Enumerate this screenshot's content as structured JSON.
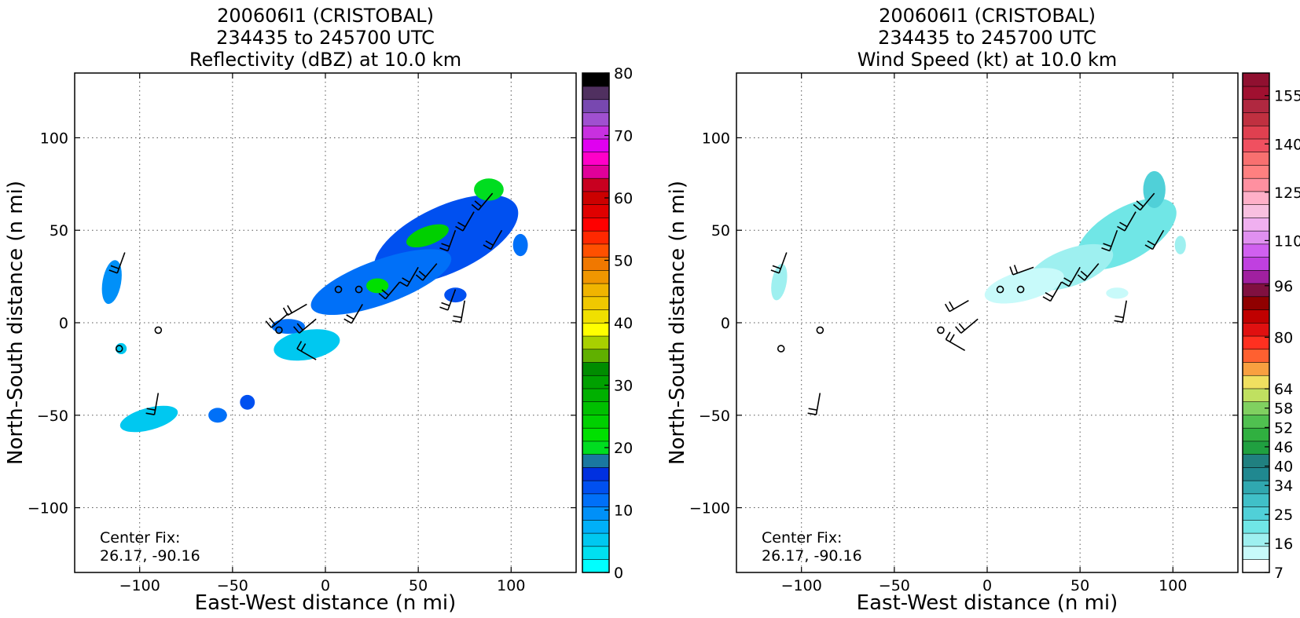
{
  "chart_data": [
    {
      "type": "heatmap",
      "title_lines": [
        "200606I1 (CRISTOBAL)",
        "234435 to 245700 UTC",
        "Reflectivity (dBZ) at 10.0 km"
      ],
      "xlabel": "East-West distance (n mi)",
      "ylabel": "North-South distance (n mi)",
      "xlim": [
        -135,
        135
      ],
      "ylim": [
        -135,
        135
      ],
      "xticks": [
        -100,
        -50,
        0,
        50,
        100
      ],
      "xtick_labels": [
        "−100",
        "−50",
        "0",
        "50",
        "100"
      ],
      "yticks": [
        100,
        50,
        0,
        -50,
        -100
      ],
      "ytick_labels": [
        "100",
        "50",
        "0",
        "−50",
        "−100"
      ],
      "grid": true,
      "annotation": [
        "Center Fix:",
        "26.17, -90.16"
      ],
      "colorbar": {
        "min": 0,
        "max": 80,
        "tick_values": [
          0,
          10,
          20,
          30,
          40,
          50,
          60,
          70,
          80
        ],
        "tick_labels": [
          "0",
          "10",
          "20",
          "30",
          "40",
          "50",
          "60",
          "70",
          "80"
        ],
        "colors": [
          "#00ffff",
          "#00e0f0",
          "#00c8f0",
          "#00b0f8",
          "#0090f8",
          "#0070f8",
          "#0050f0",
          "#0030e0",
          "#1a78a0",
          "#00dd20",
          "#00e000",
          "#00d000",
          "#00c000",
          "#00b000",
          "#00a000",
          "#008c00",
          "#60b000",
          "#a8d000",
          "#ffff00",
          "#f0e000",
          "#f0c800",
          "#f0b400",
          "#f09600",
          "#f07800",
          "#ff5000",
          "#ff2800",
          "#ff0000",
          "#e00000",
          "#cc0000",
          "#c80020",
          "#e0009a",
          "#ff00c8",
          "#e000f0",
          "#c830e0",
          "#a050d0",
          "#7848b0",
          "#503060",
          "#000000"
        ]
      },
      "regions": [
        {
          "value": 14,
          "cx": 65,
          "cy": 45,
          "rx": 42,
          "ry": 18,
          "rot": -25
        },
        {
          "value": 24,
          "cx": 55,
          "cy": 47,
          "rx": 12,
          "ry": 5,
          "rot": -20
        },
        {
          "value": 20,
          "cx": 88,
          "cy": 72,
          "rx": 8,
          "ry": 6,
          "rot": 0
        },
        {
          "value": 12,
          "cx": 30,
          "cy": 22,
          "rx": 40,
          "ry": 12,
          "rot": -20
        },
        {
          "value": 22,
          "cx": 28,
          "cy": 20,
          "rx": 6,
          "ry": 4,
          "rot": 0
        },
        {
          "value": 13,
          "cx": 70,
          "cy": 15,
          "rx": 6,
          "ry": 4,
          "rot": 0
        },
        {
          "value": 12,
          "cx": 105,
          "cy": 42,
          "rx": 4,
          "ry": 6,
          "rot": 0
        },
        {
          "value": 6,
          "cx": -10,
          "cy": -12,
          "rx": 18,
          "ry": 8,
          "rot": -10
        },
        {
          "value": 11,
          "cx": -20,
          "cy": -2,
          "rx": 9,
          "ry": 4,
          "rot": 0
        },
        {
          "value": 10,
          "cx": -115,
          "cy": 22,
          "rx": 5,
          "ry": 12,
          "rot": 10
        },
        {
          "value": 5,
          "cx": -95,
          "cy": -52,
          "rx": 16,
          "ry": 6,
          "rot": -15
        },
        {
          "value": 12,
          "cx": -58,
          "cy": -50,
          "rx": 5,
          "ry": 4,
          "rot": 0
        },
        {
          "value": 14,
          "cx": -42,
          "cy": -43,
          "rx": 4,
          "ry": 4,
          "rot": 0
        },
        {
          "value": 6,
          "cx": -110,
          "cy": -14,
          "rx": 3,
          "ry": 3,
          "rot": 0
        }
      ],
      "barbs": [
        {
          "x": -108,
          "y": 38,
          "dir": 200
        },
        {
          "x": -90,
          "y": -38,
          "dir": 190
        },
        {
          "x": -10,
          "y": 10,
          "dir": 240
        },
        {
          "x": -5,
          "y": 2,
          "dir": 230
        },
        {
          "x": -5,
          "y": -20,
          "dir": 300
        },
        {
          "x": 20,
          "y": 10,
          "dir": 210
        },
        {
          "x": 40,
          "y": 22,
          "dir": 220
        },
        {
          "x": 50,
          "y": 30,
          "dir": 210
        },
        {
          "x": 60,
          "y": 32,
          "dir": 220
        },
        {
          "x": 70,
          "y": 50,
          "dir": 200
        },
        {
          "x": 80,
          "y": 60,
          "dir": 210
        },
        {
          "x": 90,
          "y": 70,
          "dir": 220
        },
        {
          "x": 95,
          "y": 50,
          "dir": 210
        },
        {
          "x": 70,
          "y": 18,
          "dir": 200
        },
        {
          "x": 75,
          "y": 12,
          "dir": 190
        },
        {
          "x": -20,
          "y": 5,
          "dir": 230
        }
      ],
      "circles": [
        [
          -111,
          -14
        ],
        [
          -90,
          -4
        ],
        [
          -25,
          -4
        ],
        [
          7,
          18
        ],
        [
          18,
          18
        ]
      ]
    },
    {
      "type": "heatmap",
      "title_lines": [
        "200606I1 (CRISTOBAL)",
        "234435 to 245700 UTC",
        "Wind Speed (kt) at 10.0 km"
      ],
      "xlabel": "East-West distance (n mi)",
      "ylabel": "North-South distance (n mi)",
      "xlim": [
        -135,
        135
      ],
      "ylim": [
        -135,
        135
      ],
      "xticks": [
        -100,
        -50,
        0,
        50,
        100
      ],
      "xtick_labels": [
        "−100",
        "−50",
        "0",
        "50",
        "100"
      ],
      "yticks": [
        100,
        50,
        0,
        -50,
        -100
      ],
      "ytick_labels": [
        "100",
        "50",
        "0",
        "−50",
        "−100"
      ],
      "grid": true,
      "annotation": [
        "Center Fix:",
        "26.17, -90.16"
      ],
      "colorbar": {
        "min": 7,
        "max": 162,
        "tick_values": [
          7,
          16,
          25,
          34,
          40,
          46,
          52,
          58,
          64,
          80,
          96,
          110,
          125,
          140,
          155
        ],
        "tick_labels": [
          "7",
          "16",
          "25",
          "34",
          "40",
          "46",
          "52",
          "58",
          "64",
          "80",
          "96",
          "110",
          "125",
          "140",
          "155"
        ],
        "colors": [
          "#ffffff",
          "#c8fafa",
          "#9ef0f0",
          "#70e6e6",
          "#50d0d8",
          "#40c0c8",
          "#30a8b0",
          "#208890",
          "#208080",
          "#20a040",
          "#30b040",
          "#50c050",
          "#80d060",
          "#c0e060",
          "#f0e060",
          "#f8a040",
          "#ff6030",
          "#ff3020",
          "#e01010",
          "#c00000",
          "#900000",
          "#801040",
          "#a020a0",
          "#c040e0",
          "#d060f0",
          "#e090f0",
          "#f0b0f0",
          "#f8c0e0",
          "#ffb0c8",
          "#ff90a0",
          "#ff8080",
          "#f87070",
          "#f05060",
          "#e04050",
          "#c03040",
          "#b02840",
          "#a01030",
          "#901030"
        ]
      },
      "regions": [
        {
          "value": 22,
          "cx": 75,
          "cy": 48,
          "rx": 30,
          "ry": 14,
          "rot": -30
        },
        {
          "value": 24,
          "cx": 90,
          "cy": 72,
          "rx": 6,
          "ry": 10,
          "rot": 0
        },
        {
          "value": 18,
          "cx": 45,
          "cy": 30,
          "rx": 24,
          "ry": 10,
          "rot": -20
        },
        {
          "value": 12,
          "cx": 20,
          "cy": 20,
          "rx": 22,
          "ry": 8,
          "rot": -15
        },
        {
          "value": 17,
          "cx": -112,
          "cy": 22,
          "rx": 4,
          "ry": 10,
          "rot": 10
        },
        {
          "value": 18,
          "cx": 104,
          "cy": 42,
          "rx": 3,
          "ry": 5,
          "rot": 0
        },
        {
          "value": 14,
          "cx": 70,
          "cy": 16,
          "rx": 6,
          "ry": 3,
          "rot": 0
        },
        {
          "value": 10,
          "cx": -60,
          "cy": -52,
          "rx": 3,
          "ry": 2,
          "rot": 0
        }
      ],
      "barbs": [
        {
          "x": -108,
          "y": 38,
          "dir": 200
        },
        {
          "x": -90,
          "y": -38,
          "dir": 190
        },
        {
          "x": -10,
          "y": 12,
          "dir": 240
        },
        {
          "x": -12,
          "y": -15,
          "dir": 300
        },
        {
          "x": -5,
          "y": 2,
          "dir": 230
        },
        {
          "x": 25,
          "y": 30,
          "dir": 250
        },
        {
          "x": 40,
          "y": 22,
          "dir": 210
        },
        {
          "x": 50,
          "y": 30,
          "dir": 210
        },
        {
          "x": 60,
          "y": 32,
          "dir": 220
        },
        {
          "x": 70,
          "y": 50,
          "dir": 200
        },
        {
          "x": 80,
          "y": 60,
          "dir": 210
        },
        {
          "x": 90,
          "y": 70,
          "dir": 220
        },
        {
          "x": 95,
          "y": 50,
          "dir": 210
        },
        {
          "x": 75,
          "y": 12,
          "dir": 190
        }
      ],
      "circles": [
        [
          -111,
          -14
        ],
        [
          -90,
          -4
        ],
        [
          -25,
          -4
        ],
        [
          7,
          18
        ],
        [
          18,
          18
        ]
      ]
    }
  ]
}
